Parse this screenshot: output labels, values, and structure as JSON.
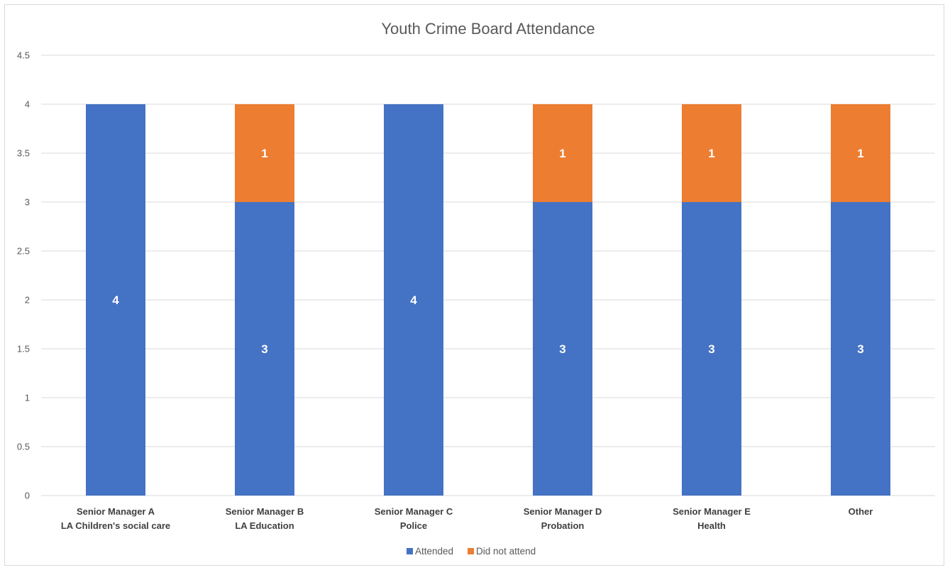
{
  "chart_data": {
    "type": "bar",
    "stacked": true,
    "title": "Youth Crime Board Attendance",
    "xlabel": "",
    "ylabel": "",
    "categories": [
      [
        "Senior Manager A",
        "LA Children's social care"
      ],
      [
        "Senior Manager B",
        "LA Education"
      ],
      [
        "Senior Manager C",
        "Police"
      ],
      [
        "Senior Manager D",
        "Probation"
      ],
      [
        "Senior Manager E",
        "Health"
      ],
      [
        "Other"
      ]
    ],
    "series": [
      {
        "name": "Attended",
        "color": "#4472C4",
        "values": [
          4,
          3,
          4,
          3,
          3,
          3
        ]
      },
      {
        "name": "Did not attend",
        "color": "#ED7D31",
        "values": [
          0,
          1,
          0,
          1,
          1,
          1
        ]
      }
    ],
    "ylim": [
      0,
      4.5
    ],
    "yticks": [
      "0",
      "0.5",
      "1",
      "1.5",
      "2",
      "2.5",
      "3",
      "3.5",
      "4",
      "4.5"
    ],
    "grid": true,
    "legend_position": "bottom",
    "data_labels": true
  }
}
